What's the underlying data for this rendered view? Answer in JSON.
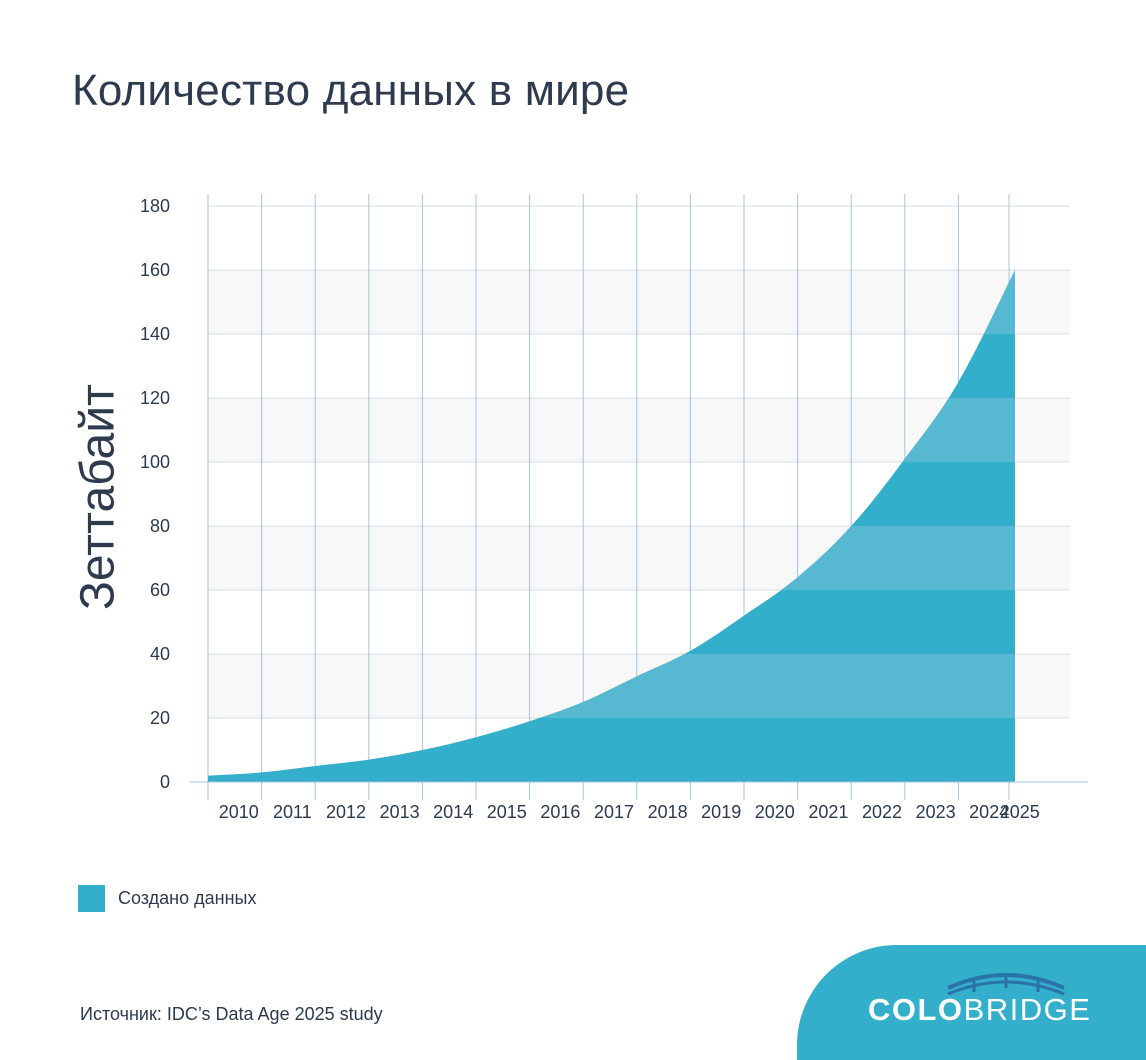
{
  "title": "Количество данных в мире",
  "source": "Источник: IDC’s Data Age 2025 study",
  "brand": {
    "bold": "COLO",
    "light": "BRIDGE"
  },
  "colors": {
    "area": "#33aecb",
    "area_light": "#57b8d1",
    "band": "#f8f8f8",
    "grid_vertical": "#a8c3dc",
    "grid_horizontal": "#d6dde5",
    "text": "#2e3a4e",
    "brand_bg": "#33aecb"
  },
  "chart_data": {
    "type": "area",
    "xlabel": "",
    "ylabel": "Зеттабайт",
    "ylim": [
      0,
      180
    ],
    "yticks": [
      0,
      20,
      40,
      60,
      80,
      100,
      120,
      140,
      160,
      180
    ],
    "grid": true,
    "legend_position": "bottom-left",
    "categories": [
      "2010",
      "2011",
      "2012",
      "2013",
      "2014",
      "2015",
      "2016",
      "2017",
      "2018",
      "2019",
      "2020",
      "2021",
      "2022",
      "2023",
      "2024",
      "2025"
    ],
    "series": [
      {
        "name": "Создано данных",
        "values": [
          2,
          3,
          5,
          7,
          10,
          14,
          19,
          25,
          33,
          41,
          52,
          64,
          80,
          101,
          125,
          160
        ]
      }
    ]
  }
}
